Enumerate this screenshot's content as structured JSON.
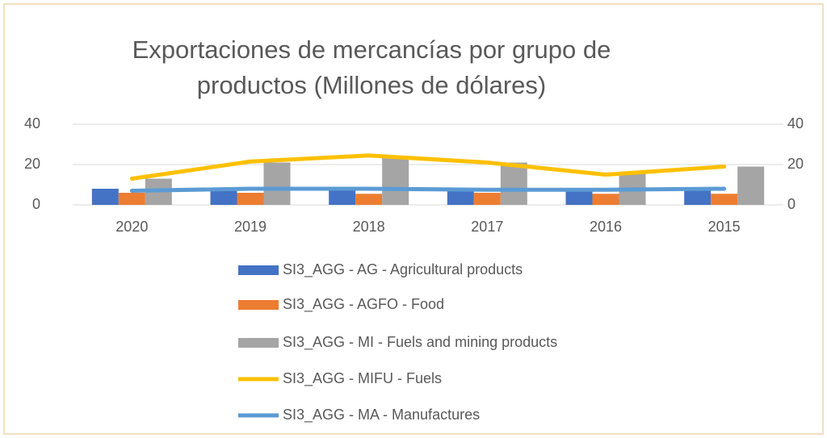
{
  "chart_data": {
    "type": "combo",
    "title": "Exportaciones de mercancías por grupo de productos (Millones de dólares)",
    "categories": [
      "2020",
      "2019",
      "2018",
      "2017",
      "2016",
      "2015"
    ],
    "series": [
      {
        "name": "SI3_AGG - AG - Agricultural products",
        "type": "bar",
        "color": "#4472c4",
        "values": [
          8,
          7.5,
          7.5,
          7.5,
          7.5,
          7.5
        ]
      },
      {
        "name": "SI3_AGG - AGFO - Food",
        "type": "bar",
        "color": "#ed7d31",
        "values": [
          6,
          6,
          5.5,
          6,
          5.5,
          5.5
        ]
      },
      {
        "name": "SI3_AGG - MI - Fuels and mining products",
        "type": "bar",
        "color": "#a5a5a5",
        "values": [
          13,
          21,
          24,
          21,
          16,
          19
        ]
      },
      {
        "name": "SI3_AGG - MIFU - Fuels",
        "type": "line",
        "axis": "y2",
        "color": "#ffc000",
        "values": [
          13,
          21.5,
          24.5,
          21,
          15,
          19
        ]
      },
      {
        "name": "SI3_AGG - MA - Manufactures",
        "type": "line",
        "axis": "y2",
        "color": "#5b9bd5",
        "values": [
          7,
          8,
          8,
          7.5,
          7.5,
          8
        ]
      }
    ],
    "ylim": [
      0,
      40
    ],
    "yticks": [
      0,
      20,
      40
    ],
    "y2lim": [
      0,
      40
    ],
    "y2ticks": [
      0,
      20,
      40
    ],
    "grid": true,
    "legend": "bottom"
  }
}
